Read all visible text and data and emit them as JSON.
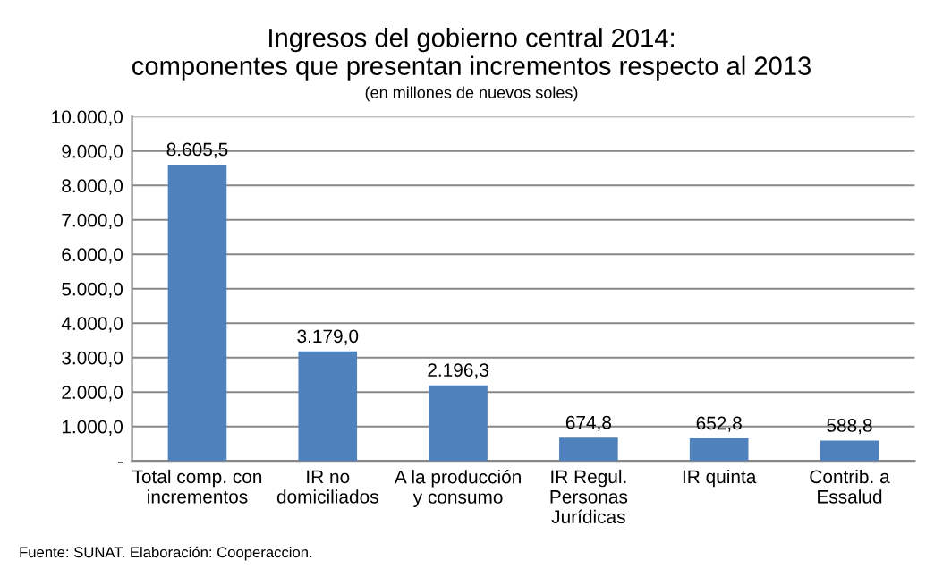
{
  "chart_data": {
    "type": "bar",
    "title": "Ingresos del gobierno central 2014:\ncomponentes que presentan incrementos respecto al 2013",
    "subtitle": "(en millones de nuevos soles)",
    "categories": [
      "Total comp. con\nincrementos",
      "IR no\ndomiciliados",
      "A la producción\ny consumo",
      "IR Regul.\nPersonas\nJurídicas",
      "IR quinta",
      "Contrib. a\nEssalud"
    ],
    "values": [
      8605.5,
      3179.0,
      2196.3,
      674.8,
      652.8,
      588.8
    ],
    "value_labels": [
      "8.605,5",
      "3.179,0",
      "2.196,3",
      "674,8",
      "652,8",
      "588,8"
    ],
    "color": "#4f81bd",
    "ylim": [
      0,
      10000
    ],
    "yticks": [
      {
        "value": 0,
        "label": "-"
      },
      {
        "value": 1000,
        "label": "1.000,0"
      },
      {
        "value": 2000,
        "label": "2.000,0"
      },
      {
        "value": 3000,
        "label": "3.000,0"
      },
      {
        "value": 4000,
        "label": "4.000,0"
      },
      {
        "value": 5000,
        "label": "5.000,0"
      },
      {
        "value": 6000,
        "label": "6.000,0"
      },
      {
        "value": 7000,
        "label": "7.000,0"
      },
      {
        "value": 8000,
        "label": "8.000,0"
      },
      {
        "value": 9000,
        "label": "9.000,0"
      },
      {
        "value": 10000,
        "label": "10.000,0"
      }
    ],
    "grid": "y",
    "annotations": [
      "Fuente: SUNAT. Elaboración: Cooperaccion."
    ]
  }
}
